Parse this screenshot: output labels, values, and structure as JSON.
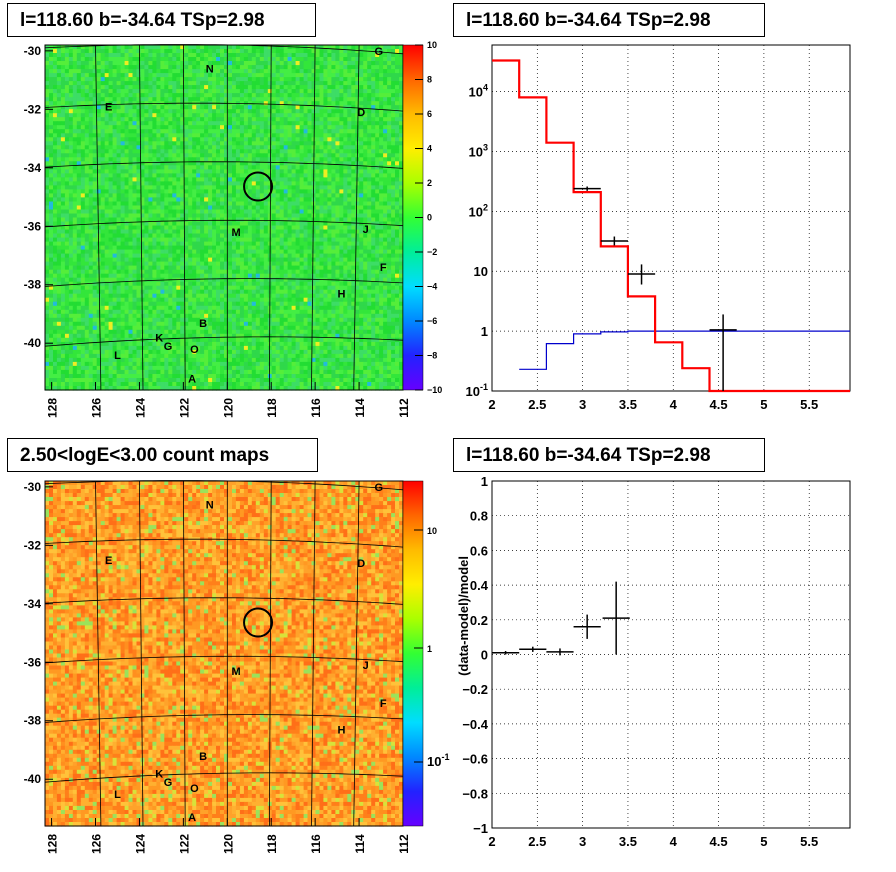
{
  "titles": {
    "tl": "l=118.60 b=-34.64 TSp=2.98",
    "tr": "l=118.60 b=-34.64 TSp=2.98",
    "bl": "2.50<logE<3.00 count maps",
    "br": "l=118.60 b=-34.64 TSp=2.98"
  },
  "chart_data": [
    {
      "type": "heatmap",
      "title": "l=118.60 b=-34.64 TSp=2.98",
      "x_ticks": [
        "128",
        "126",
        "124",
        "122",
        "120",
        "118",
        "116",
        "114",
        "112"
      ],
      "xlim": [
        128.3,
        112
      ],
      "y_ticks": [
        "-30",
        "-32",
        "-34",
        "-36",
        "-38",
        "-40"
      ],
      "ylim": [
        -41.6,
        -29.8
      ],
      "colorbar": {
        "scale": "linear",
        "range": [
          -10,
          10
        ],
        "ticks": [
          "10",
          "8",
          "6",
          "4",
          "2",
          "0",
          "−2",
          "−4",
          "−6",
          "−8",
          "−10"
        ]
      },
      "source_circle": {
        "l": 118.6,
        "b": -34.64
      },
      "grid_labels": [
        {
          "text": "N",
          "l": 120.8,
          "b": -30.6
        },
        {
          "text": "G",
          "l": 113.1,
          "b": -30.0
        },
        {
          "text": "E",
          "l": 125.4,
          "b": -31.9
        },
        {
          "text": "D",
          "l": 113.9,
          "b": -32.1
        },
        {
          "text": "M",
          "l": 119.6,
          "b": -36.2
        },
        {
          "text": "J",
          "l": 113.7,
          "b": -36.1
        },
        {
          "text": "F",
          "l": 112.9,
          "b": -37.4
        },
        {
          "text": "H",
          "l": 114.8,
          "b": -38.3
        },
        {
          "text": "B",
          "l": 121.1,
          "b": -39.3
        },
        {
          "text": "K",
          "l": 123.1,
          "b": -39.8
        },
        {
          "text": "G",
          "l": 122.7,
          "b": -40.1
        },
        {
          "text": "O",
          "l": 121.5,
          "b": -40.2
        },
        {
          "text": "L",
          "l": 125.0,
          "b": -40.4
        },
        {
          "text": "A",
          "l": 121.6,
          "b": -41.2
        }
      ]
    },
    {
      "type": "line",
      "title": "l=118.60 b=-34.64 TSp=2.98",
      "x_ticks": [
        "2",
        "2.5",
        "3",
        "3.5",
        "4",
        "4.5",
        "5",
        "5.5"
      ],
      "xlim": [
        2,
        5.95
      ],
      "y_ticks": [
        "10^-1",
        "1",
        "10",
        "10^2",
        "10^3",
        "10^4"
      ],
      "yscale": "log",
      "ylim": [
        0.1,
        60000
      ],
      "grid": true,
      "series": [
        {
          "color": "#ff0000",
          "step_edges": [
            2,
            2.3,
            2.6,
            2.9,
            3.2,
            3.5,
            3.8,
            4.1,
            4.4,
            5.95
          ],
          "values": [
            33000,
            8000,
            1400,
            210,
            26,
            3.8,
            0.65,
            0.24,
            0.1
          ]
        },
        {
          "color": "#0000cc",
          "step_edges": [
            2.3,
            2.6,
            2.9,
            3.2,
            3.5,
            3.8,
            4.1,
            4.4,
            5.95
          ],
          "values": [
            0.23,
            0.62,
            0.9,
            0.97,
            1.0,
            1.0,
            1.0,
            1.0
          ]
        },
        {
          "color": "#000000",
          "type": "errorbar",
          "points": [
            {
              "x": 3.05,
              "y": 240,
              "xerr": 0.15,
              "ylo": 220,
              "yhi": 260
            },
            {
              "x": 3.35,
              "y": 32,
              "xerr": 0.15,
              "ylo": 27,
              "yhi": 38
            },
            {
              "x": 3.65,
              "y": 9,
              "xerr": 0.15,
              "ylo": 6,
              "yhi": 13
            },
            {
              "x": 4.55,
              "y": 1.05,
              "xerr": 0.15,
              "ylo": 0.1,
              "yhi": 1.9
            }
          ]
        }
      ]
    },
    {
      "type": "heatmap",
      "title": "2.50<logE<3.00 count maps",
      "x_ticks": [
        "128",
        "126",
        "124",
        "122",
        "120",
        "118",
        "116",
        "114",
        "112"
      ],
      "xlim": [
        128.3,
        112
      ],
      "y_ticks": [
        "-30",
        "-32",
        "-34",
        "-36",
        "-38",
        "-40"
      ],
      "ylim": [
        -41.6,
        -29.8
      ],
      "colorbar": {
        "scale": "log",
        "ticks": [
          "10",
          "1",
          "10^-1"
        ]
      },
      "source_circle": {
        "l": 118.6,
        "b": -34.64
      },
      "grid_labels": [
        {
          "text": "N",
          "l": 120.8,
          "b": -30.6
        },
        {
          "text": "G",
          "l": 113.1,
          "b": -30.0
        },
        {
          "text": "E",
          "l": 125.4,
          "b": -32.5
        },
        {
          "text": "D",
          "l": 113.9,
          "b": -32.6
        },
        {
          "text": "M",
          "l": 119.6,
          "b": -36.3
        },
        {
          "text": "J",
          "l": 113.7,
          "b": -36.1
        },
        {
          "text": "F",
          "l": 112.9,
          "b": -37.4
        },
        {
          "text": "H",
          "l": 114.8,
          "b": -38.3
        },
        {
          "text": "B",
          "l": 121.1,
          "b": -39.2
        },
        {
          "text": "K",
          "l": 123.1,
          "b": -39.8
        },
        {
          "text": "G",
          "l": 122.7,
          "b": -40.1
        },
        {
          "text": "O",
          "l": 121.5,
          "b": -40.3
        },
        {
          "text": "L",
          "l": 125.0,
          "b": -40.5
        },
        {
          "text": "A",
          "l": 121.6,
          "b": -41.3
        }
      ]
    },
    {
      "type": "scatter",
      "title": "l=118.60 b=-34.64 TSp=2.98",
      "ylabel": "(data-model)/model",
      "x_ticks": [
        "2",
        "2.5",
        "3",
        "3.5",
        "4",
        "4.5",
        "5",
        "5.5"
      ],
      "xlim": [
        2,
        5.95
      ],
      "y_ticks": [
        "1",
        "0.8",
        "0.6",
        "0.4",
        "0.2",
        "0",
        "−0.2",
        "−0.4",
        "−0.6",
        "−0.8",
        "−1"
      ],
      "ylim": [
        -1,
        1
      ],
      "grid": true,
      "points": [
        {
          "x": 2.15,
          "y": 0.01,
          "xerr": 0.15,
          "yerr": 0.01
        },
        {
          "x": 2.45,
          "y": 0.03,
          "xerr": 0.15,
          "yerr": 0.015
        },
        {
          "x": 2.75,
          "y": 0.015,
          "xerr": 0.15,
          "yerr": 0.02
        },
        {
          "x": 3.05,
          "y": 0.16,
          "xerr": 0.15,
          "yerr": 0.07
        },
        {
          "x": 3.37,
          "y": 0.21,
          "xerr": 0.15,
          "yerr": 0.21
        }
      ]
    }
  ]
}
